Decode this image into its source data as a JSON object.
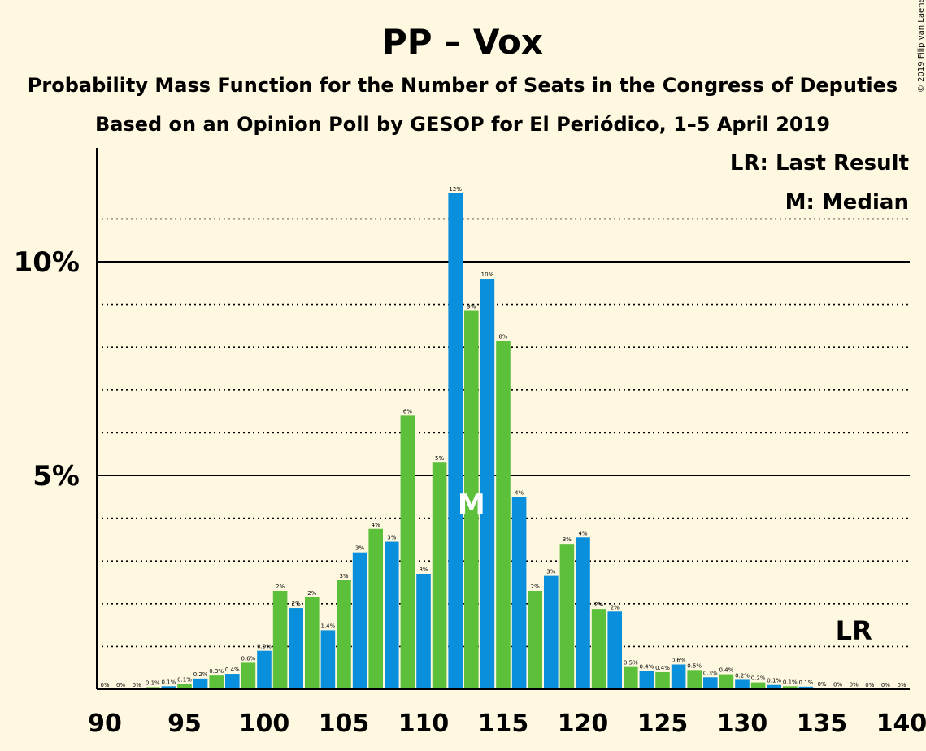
{
  "title": "PP – Vox",
  "subtitle1": "Probability Mass Function for the Number of Seats in the Congress of Deputies",
  "subtitle2": "Based on an Opinion Poll by GESOP for El Periódico, 1–5 April 2019",
  "copyright": "© 2019 Filip van Laenen",
  "legend": {
    "last_result": "LR: Last Result",
    "median": "M: Median"
  },
  "colors": {
    "background": "#FFF8E1",
    "blue": "#0A8FDC",
    "green": "#5CC03B"
  },
  "chart_data": {
    "type": "bar",
    "x": [
      90,
      91,
      92,
      93,
      94,
      95,
      96,
      97,
      98,
      99,
      100,
      101,
      102,
      103,
      104,
      105,
      106,
      107,
      108,
      109,
      110,
      111,
      112,
      113,
      114,
      115,
      116,
      117,
      118,
      119,
      120,
      121,
      122,
      123,
      124,
      125,
      126,
      127,
      128,
      129,
      130,
      131,
      132,
      133,
      134,
      135,
      136,
      137,
      138,
      139,
      140
    ],
    "values": [
      0,
      0,
      0,
      0.05,
      0.07,
      0.12,
      0.25,
      0.32,
      0.36,
      0.62,
      0.9,
      2.3,
      1.9,
      2.15,
      1.38,
      2.55,
      3.2,
      3.75,
      3.45,
      6.4,
      2.7,
      5.3,
      11.6,
      8.85,
      9.6,
      8.15,
      4.5,
      2.3,
      2.65,
      3.4,
      3.55,
      1.88,
      1.82,
      0.52,
      0.43,
      0.4,
      0.58,
      0.45,
      0.28,
      0.35,
      0.22,
      0.16,
      0.1,
      0.07,
      0.06,
      0.02,
      0.01,
      0.01,
      0,
      0,
      0
    ],
    "labels": [
      "0%",
      "0%",
      "0%",
      "0.1%",
      "0.1%",
      "0.1%",
      "0.2%",
      "0.3%",
      "0.4%",
      "0.6%",
      "0.9%",
      "2%",
      "2%",
      "2%",
      "1.4%",
      "3%",
      "3%",
      "4%",
      "3%",
      "6%",
      "3%",
      "5%",
      "12%",
      "9%",
      "10%",
      "8%",
      "4%",
      "2%",
      "3%",
      "3%",
      "4%",
      "2%",
      "2%",
      "0.5%",
      "0.4%",
      "0.4%",
      "0.6%",
      "0.5%",
      "0.3%",
      "0.4%",
      "0.2%",
      "0.2%",
      "0.1%",
      "0.1%",
      "0.1%",
      "0%",
      "0%",
      "0%",
      "0%",
      "0%",
      "0%"
    ],
    "ylim": [
      0,
      12.6
    ],
    "y_ticks": [
      {
        "value": 5,
        "label": "5%"
      },
      {
        "value": 10,
        "label": "10%"
      }
    ],
    "x_ticks": [
      90,
      95,
      100,
      105,
      110,
      115,
      120,
      125,
      130,
      135,
      140
    ],
    "x_tick_labels": [
      "90",
      "95",
      "100",
      "105",
      "110",
      "115",
      "120",
      "125",
      "130",
      "135",
      "140"
    ],
    "gridlines": "dotted every 1%, solid at 5% and 10%",
    "median": {
      "x": 113,
      "label": "M"
    },
    "last_result": {
      "x": 137,
      "label": "LR"
    },
    "legend_position": "top-right"
  }
}
